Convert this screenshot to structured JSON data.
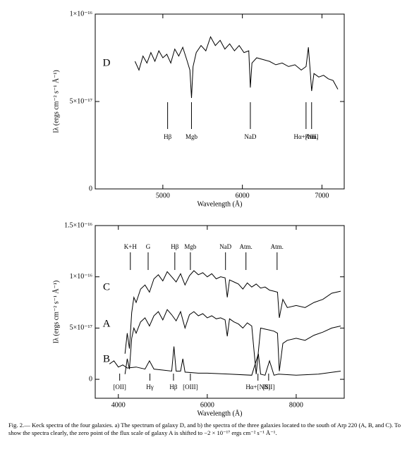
{
  "chart_data": [
    {
      "type": "line",
      "ylabel": "Iλ (ergs cm⁻² s⁻¹ Å⁻¹)",
      "xlabel": "Wavelength (Å)",
      "xlim": [
        4150,
        7280
      ],
      "xticks": [
        5000,
        6000,
        7000
      ],
      "ylim": [
        0,
        1e-16
      ],
      "yticks": [
        0,
        {
          "value": 5e-17,
          "label": "5×10⁻¹⁷"
        },
        {
          "value": 1e-16,
          "label": "1×10⁻¹⁶"
        }
      ],
      "series": [
        {
          "name": "D",
          "color": "#000000",
          "x": [
            4650,
            4700,
            4750,
            4800,
            4850,
            4900,
            4950,
            5000,
            5050,
            5100,
            5150,
            5200,
            5250,
            5300,
            5340,
            5360,
            5380,
            5420,
            5480,
            5540,
            5600,
            5660,
            5720,
            5780,
            5840,
            5900,
            5960,
            6020,
            6080,
            6100,
            6120,
            6180,
            6260,
            6340,
            6420,
            6500,
            6580,
            6660,
            6740,
            6800,
            6830,
            6850,
            6870,
            6900,
            6960,
            7020,
            7080,
            7140,
            7200
          ],
          "values": [
            7.3e-17,
            6.8e-17,
            7.6e-17,
            7.2e-17,
            7.8e-17,
            7.3e-17,
            7.9e-17,
            7.5e-17,
            7.7e-17,
            7.2e-17,
            8e-17,
            7.6e-17,
            8.1e-17,
            7.4e-17,
            6.8e-17,
            5.2e-17,
            7e-17,
            7.8e-17,
            8.2e-17,
            7.9e-17,
            8.7e-17,
            8.2e-17,
            8.5e-17,
            8e-17,
            8.3e-17,
            7.9e-17,
            8.2e-17,
            7.8e-17,
            7.9e-17,
            5.8e-17,
            7.2e-17,
            7.5e-17,
            7.4e-17,
            7.3e-17,
            7.1e-17,
            7.2e-17,
            7e-17,
            7.1e-17,
            6.8e-17,
            7e-17,
            8.1e-17,
            6.9e-17,
            5.6e-17,
            6.6e-17,
            6.4e-17,
            6.5e-17,
            6.3e-17,
            6.2e-17,
            5.7e-17
          ]
        }
      ],
      "annotations": [
        {
          "label": "Hβ",
          "x": 5060
        },
        {
          "label": "Mgb",
          "x": 5360
        },
        {
          "label": "NaD",
          "x": 6100
        },
        {
          "label": "Hα+[NII]",
          "x": 6800
        },
        {
          "label": "Atm.",
          "x": 6870
        }
      ]
    },
    {
      "type": "line",
      "ylabel": "Iλ (ergs cm⁻² s⁻¹ Å⁻¹)",
      "xlabel": "Wavelength (Å)",
      "xlim": [
        3480,
        9080
      ],
      "xticks": [
        4000,
        6000,
        8000
      ],
      "ylim": [
        -1.85e-17,
        1.5e-16
      ],
      "yticks": [
        0,
        {
          "value": 5e-17,
          "label": "5×10⁻¹⁷"
        },
        {
          "value": 1e-16,
          "label": "1×10⁻¹⁶"
        },
        {
          "value": 1.5e-16,
          "label": "1.5×10⁻¹⁶"
        }
      ],
      "series": [
        {
          "name": "C",
          "color": "#000000",
          "x": [
            4150,
            4200,
            4250,
            4300,
            4350,
            4400,
            4500,
            4600,
            4700,
            4800,
            4900,
            5000,
            5100,
            5200,
            5300,
            5400,
            5500,
            5600,
            5700,
            5800,
            5900,
            6000,
            6100,
            6200,
            6300,
            6400,
            6450,
            6500,
            6600,
            6700,
            6800,
            6900,
            7000,
            7100,
            7200,
            7300,
            7400,
            7500,
            7580,
            7620,
            7700,
            7800,
            8000,
            8200,
            8400,
            8600,
            8800,
            9000
          ],
          "values": [
            2.5e-17,
            4.5e-17,
            3e-17,
            6.5e-17,
            8e-17,
            7.5e-17,
            8.8e-17,
            9.2e-17,
            8.5e-17,
            9.8e-17,
            1.02e-16,
            9.6e-17,
            1.05e-16,
            1e-16,
            9.5e-17,
            1.03e-16,
            9.2e-17,
            1.01e-16,
            1.06e-16,
            1.02e-16,
            1.04e-16,
            1e-16,
            1.03e-16,
            9.8e-17,
            1e-16,
            9.9e-17,
            8e-17,
            9.7e-17,
            9.5e-17,
            9.3e-17,
            8.8e-17,
            9.4e-17,
            9e-17,
            9.3e-17,
            8.9e-17,
            9e-17,
            8.7e-17,
            8.6e-17,
            8.5e-17,
            6e-17,
            7.8e-17,
            7e-17,
            7.2e-17,
            7e-17,
            7.5e-17,
            7.8e-17,
            8.4e-17,
            8.6e-17
          ]
        },
        {
          "name": "A",
          "color": "#000000",
          "x": [
            4150,
            4200,
            4250,
            4300,
            4350,
            4400,
            4500,
            4600,
            4700,
            4800,
            4900,
            5000,
            5100,
            5200,
            5300,
            5400,
            5500,
            5600,
            5700,
            5800,
            5900,
            6000,
            6100,
            6200,
            6300,
            6400,
            6450,
            6500,
            6600,
            6700,
            6800,
            6900,
            7000,
            7100,
            7200,
            7300,
            7400,
            7500,
            7580,
            7620,
            7700,
            7800,
            8000,
            8200,
            8400,
            8600,
            8800,
            9000
          ],
          "values": [
            5e-18,
            2e-17,
            1e-17,
            4e-17,
            5e-17,
            4.5e-17,
            5.6e-17,
            6e-17,
            5.2e-17,
            6.2e-17,
            6.6e-17,
            5.8e-17,
            6.8e-17,
            6.3e-17,
            5.7e-17,
            6.6e-17,
            5e-17,
            6.3e-17,
            6.6e-17,
            6.2e-17,
            6.4e-17,
            6e-17,
            6.2e-17,
            5.9e-17,
            6e-17,
            5.8e-17,
            4.2e-17,
            5.9e-17,
            5.6e-17,
            5.4e-17,
            5e-17,
            5.5e-17,
            5.2e-17,
            5e-18,
            5e-17,
            4.9e-17,
            4.8e-17,
            4.7e-17,
            4.5e-17,
            8e-18,
            3.5e-17,
            3.8e-17,
            4e-17,
            3.8e-17,
            4.3e-17,
            4.6e-17,
            5e-17,
            5.2e-17
          ]
        },
        {
          "name": "B",
          "color": "#000000",
          "x": [
            3800,
            3900,
            4000,
            4100,
            4200,
            4400,
            4600,
            4700,
            4800,
            5000,
            5200,
            5250,
            5300,
            5400,
            5450,
            5500,
            5800,
            6000,
            6500,
            7000,
            7150,
            7200,
            7300,
            7400,
            7500,
            7600,
            8000,
            8500,
            9000
          ],
          "values": [
            1.5e-17,
            1.8e-17,
            1.2e-17,
            1.4e-17,
            1.1e-17,
            1.2e-17,
            1e-17,
            1.8e-17,
            1e-17,
            9e-18,
            8e-18,
            3.2e-17,
            8e-18,
            8e-18,
            2e-17,
            7e-18,
            6e-18,
            6e-18,
            5e-18,
            4e-18,
            2.5e-17,
            5e-18,
            4e-18,
            1.8e-17,
            4e-18,
            5e-18,
            4e-18,
            5e-18,
            8e-18
          ]
        }
      ],
      "annotations_upper": [
        {
          "label": "K+H",
          "x": 4270
        },
        {
          "label": "G",
          "x": 4670
        },
        {
          "label": "Hβ",
          "x": 5270
        },
        {
          "label": "Mgb",
          "x": 5620
        },
        {
          "label": "NaD",
          "x": 6410
        },
        {
          "label": "Atm.",
          "x": 6870
        },
        {
          "label": "Atm.",
          "x": 7570
        }
      ],
      "annotations_lower": [
        {
          "label": "[OII]",
          "x": 4030
        },
        {
          "label": "Hγ",
          "x": 4710
        },
        {
          "label": "Hβ",
          "x": 5240
        },
        {
          "label": "[OIII]",
          "x": 5620
        },
        {
          "label": "Hα+[NII]",
          "x": 7140
        },
        {
          "label": "[SII]",
          "x": 7380
        }
      ]
    }
  ],
  "caption": "Fig. 2.— Keck spectra of the four galaxies. a) The spectrum of galaxy D, and b) the spectra of the three galaxies located to the south of Arp 220 (A, B, and C). To show the spectra clearly, the zero point of the flux scale of galaxy A is shifted to −2 × 10⁻¹⁷ ergs cm⁻² s⁻¹ Å⁻¹."
}
